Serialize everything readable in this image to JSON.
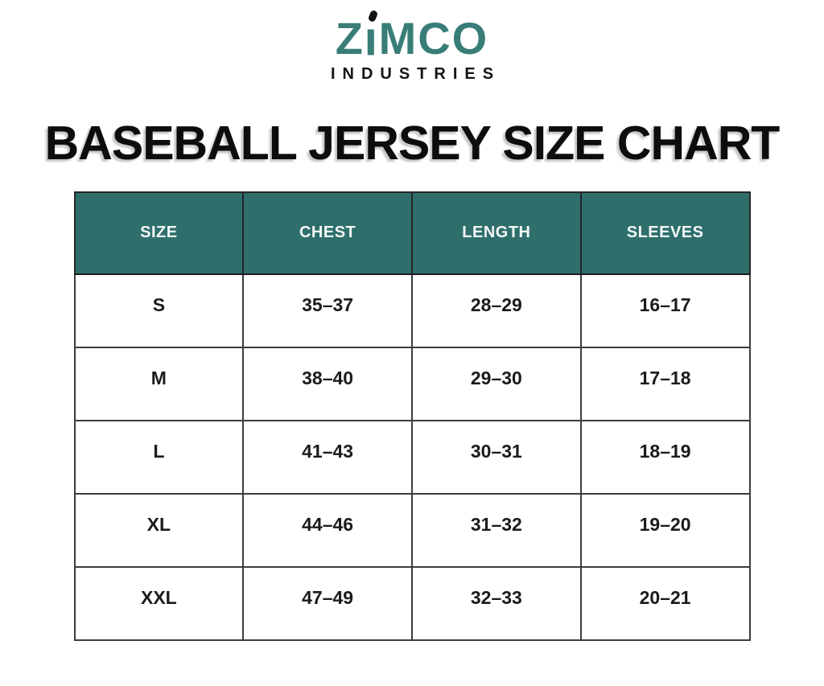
{
  "logo": {
    "part1": "Z",
    "i_body": "I",
    "part2": "MCO",
    "subtitle": "INDUSTRIES"
  },
  "title": "BASEBALL JERSEY SIZE CHART",
  "colors": {
    "brand_teal": "#397D78",
    "header_teal": "#2E6F6C",
    "border_dark": "#3D3D3D",
    "text_black": "#1B1B1B"
  },
  "chart_data": {
    "type": "table",
    "title": "BASEBALL JERSEY SIZE CHART",
    "columns": [
      "SIZE",
      "CHEST",
      "LENGTH",
      "SLEEVES"
    ],
    "rows": [
      [
        "S",
        "35–37",
        "28–29",
        "16–17"
      ],
      [
        "M",
        "38–40",
        "29–30",
        "17–18"
      ],
      [
        "L",
        "41–43",
        "30–31",
        "18–19"
      ],
      [
        "XL",
        "44–46",
        "31–32",
        "19–20"
      ],
      [
        "XXL",
        "47–49",
        "32–33",
        "20–21"
      ]
    ],
    "layout": {
      "grid": true,
      "header_background": "#2E6F6C",
      "header_text_color": "#FFFFFF"
    }
  }
}
